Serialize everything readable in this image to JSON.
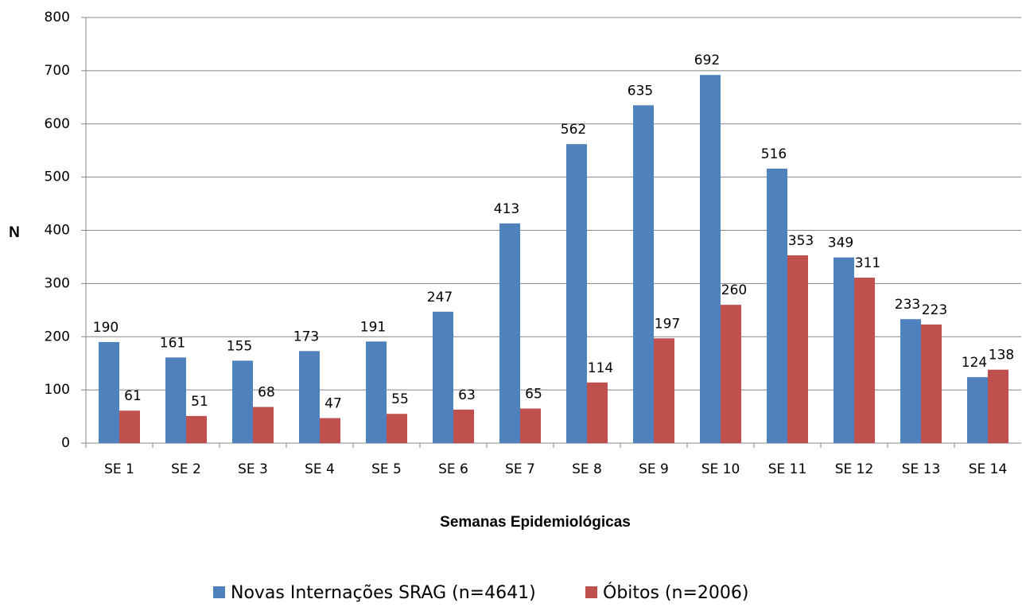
{
  "chart_data": {
    "type": "bar",
    "x_label": "Semanas Epidemiológicas",
    "y_label": "N",
    "categories": [
      "SE 1",
      "SE 2",
      "SE 3",
      "SE 4",
      "SE 5",
      "SE 6",
      "SE 7",
      "SE 8",
      "SE 9",
      "SE 10",
      "SE 11",
      "SE 12",
      "SE 13",
      "SE 14"
    ],
    "series": [
      {
        "name": "Novas Internações SRAG (n=4641)",
        "color": "#4f81bd",
        "values": [
          190,
          161,
          155,
          173,
          191,
          247,
          413,
          562,
          635,
          692,
          516,
          349,
          233,
          124
        ]
      },
      {
        "name": "Óbitos (n=2006)",
        "color": "#c0504d",
        "values": [
          61,
          51,
          68,
          47,
          55,
          63,
          65,
          114,
          197,
          260,
          353,
          311,
          223,
          138
        ]
      }
    ],
    "ylim": [
      0,
      800
    ],
    "yticks": [
      0,
      100,
      200,
      300,
      400,
      500,
      600,
      700,
      800
    ],
    "grid": true,
    "legend": "bottom"
  }
}
